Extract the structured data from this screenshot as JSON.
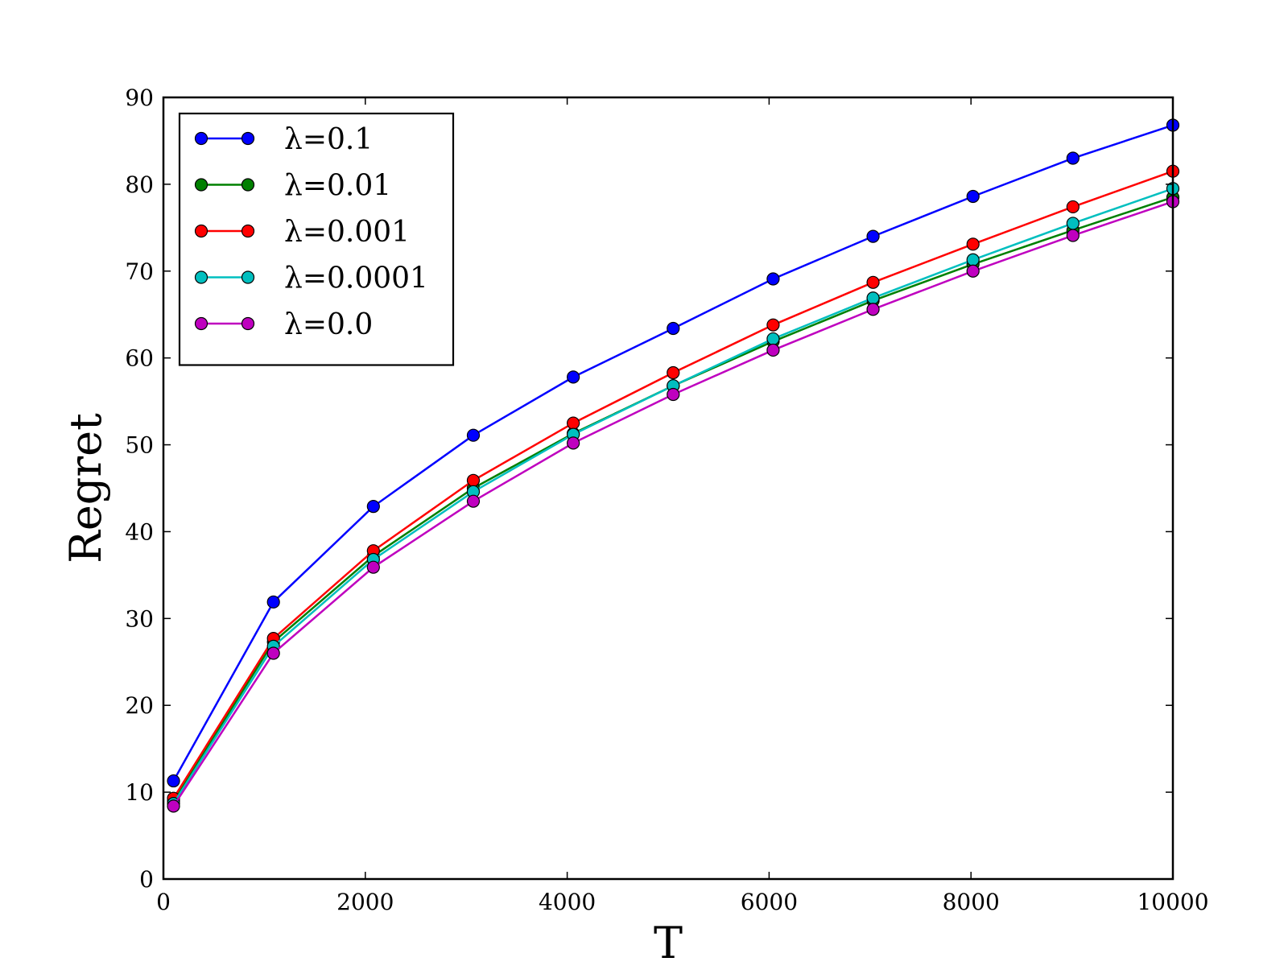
{
  "chart_data": {
    "type": "line",
    "title": "",
    "xlabel": "T",
    "ylabel": "Regret",
    "xlim": [
      0,
      10000
    ],
    "ylim": [
      0,
      90
    ],
    "xticks": [
      0,
      2000,
      4000,
      6000,
      8000,
      10000
    ],
    "yticks": [
      0,
      10,
      20,
      30,
      40,
      50,
      60,
      70,
      80,
      90
    ],
    "x": [
      100,
      1090,
      2080,
      3070,
      4060,
      5050,
      6040,
      7030,
      8020,
      9010,
      10000
    ],
    "grid": false,
    "legend_position": "top-left",
    "series": [
      {
        "name": "λ=0.1",
        "color": "#0000ff",
        "values": [
          11.3,
          31.9,
          42.9,
          51.1,
          57.8,
          63.4,
          69.1,
          74.0,
          78.6,
          83.0,
          86.8
        ]
      },
      {
        "name": "λ=0.01",
        "color": "#008000",
        "values": [
          9.0,
          27.3,
          37.2,
          45.0,
          51.3,
          56.8,
          61.9,
          66.6,
          70.8,
          74.7,
          78.5
        ]
      },
      {
        "name": "λ=0.001",
        "color": "#ff0000",
        "values": [
          9.3,
          27.7,
          37.8,
          45.9,
          52.5,
          58.3,
          63.8,
          68.7,
          73.1,
          77.4,
          81.5
        ]
      },
      {
        "name": "λ=0.0001",
        "color": "#00bfbf",
        "values": [
          8.7,
          26.8,
          36.8,
          44.6,
          51.2,
          56.8,
          62.2,
          66.9,
          71.3,
          75.5,
          79.5
        ]
      },
      {
        "name": "λ=0.0",
        "color": "#bf00bf",
        "values": [
          8.4,
          26.0,
          35.9,
          43.5,
          50.2,
          55.8,
          60.9,
          65.6,
          70.0,
          74.1,
          78.0
        ]
      }
    ]
  }
}
